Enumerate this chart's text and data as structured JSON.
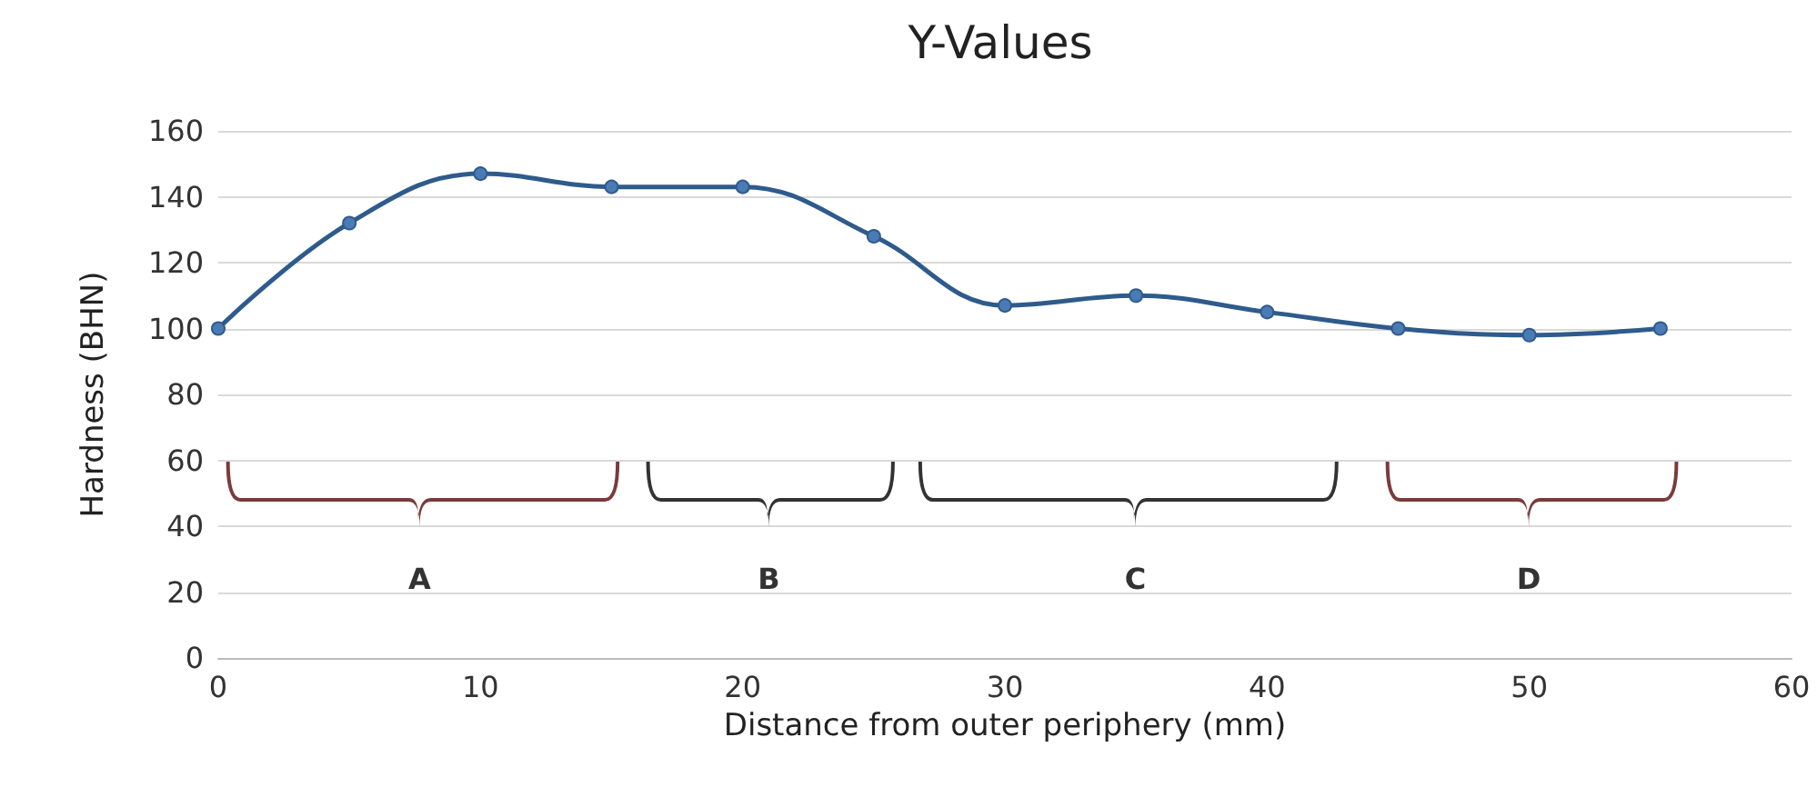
{
  "chart_data": {
    "type": "line",
    "title": "Y-Values",
    "xlabel": "Distance from outer periphery (mm)",
    "ylabel": "Hardness (BHN)",
    "x": [
      0,
      5,
      10,
      15,
      20,
      25,
      30,
      35,
      40,
      45,
      50,
      55
    ],
    "series": [
      {
        "color": "#2f5b8c",
        "values": [
          100,
          132,
          147,
          143,
          143,
          128,
          107,
          110,
          105,
          100,
          98,
          100
        ]
      }
    ],
    "xlim": [
      0,
      60
    ],
    "xticks": [
      0,
      10,
      20,
      30,
      40,
      50,
      60
    ],
    "ylim": [
      0,
      160
    ],
    "yticks": [
      0,
      20,
      40,
      60,
      80,
      100,
      120,
      140,
      160
    ],
    "grid": "y",
    "marker": "circle",
    "line_style": "solid",
    "annotations": [
      "A",
      "B",
      "C",
      "D"
    ]
  }
}
